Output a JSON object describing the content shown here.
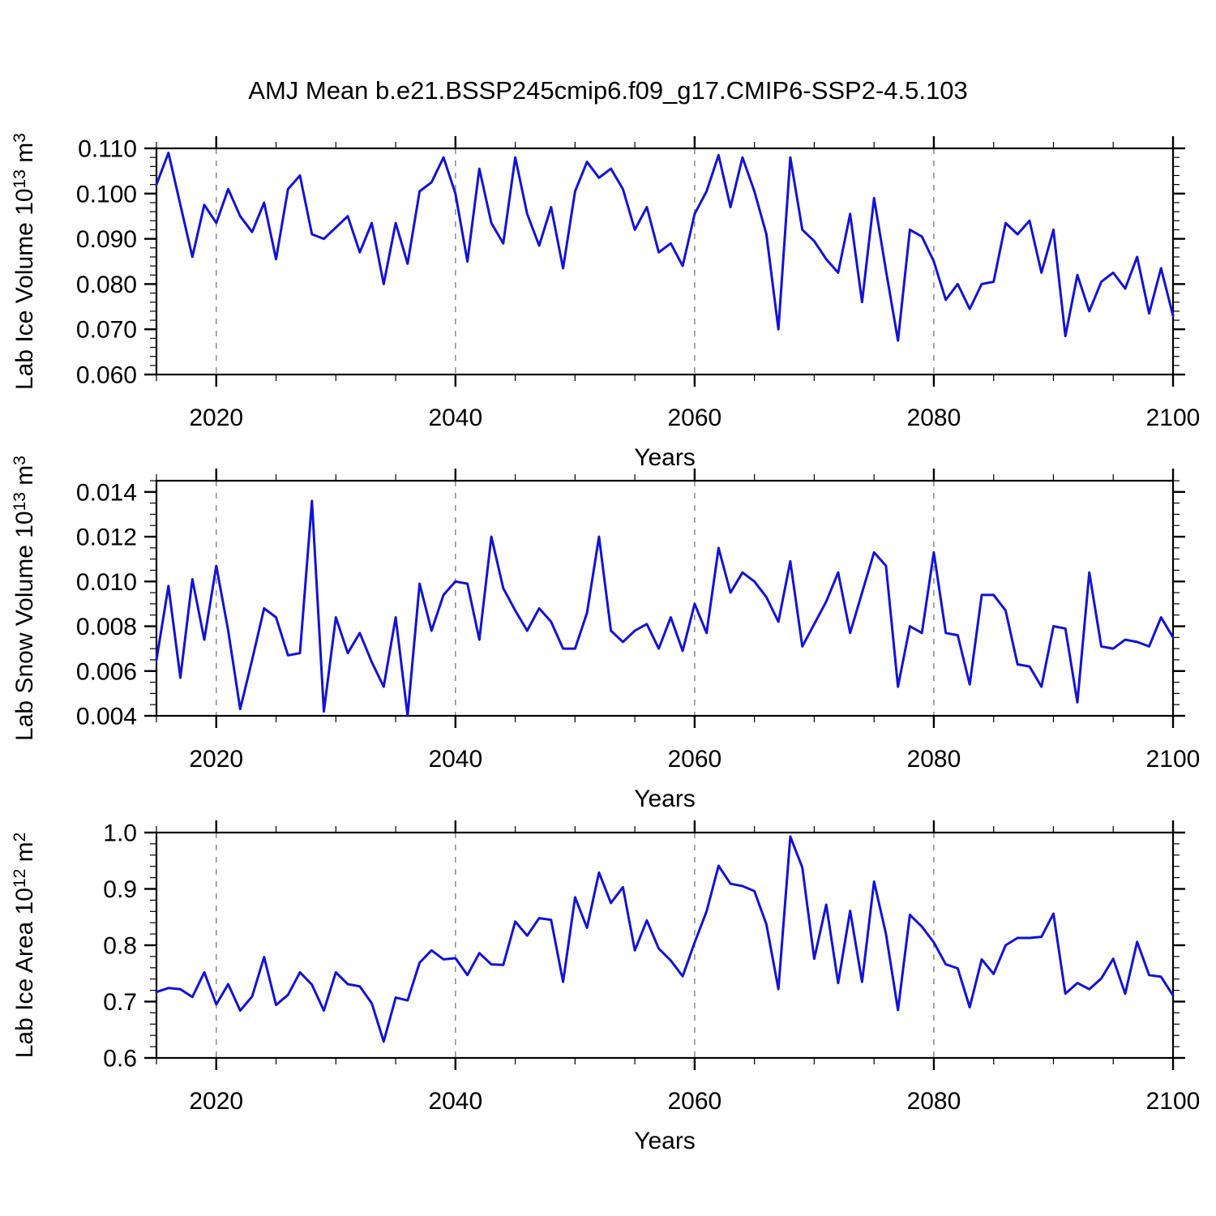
{
  "title": "AMJ Mean b.e21.BSSP245cmip6.f09_g17.CMIP6-SSP2-4.5.103",
  "colors": {
    "line": "#1212d8",
    "gridline": "#8a8a8a",
    "axis": "#000000",
    "background": "#ffffff"
  },
  "x_axis": {
    "label": "Years",
    "min": 2015,
    "max": 2100,
    "major_ticks": [
      2020,
      2040,
      2060,
      2080,
      2100
    ],
    "minor_step": 5,
    "dashed_gridlines": [
      2020,
      2040,
      2060,
      2080
    ]
  },
  "chart_data": [
    {
      "type": "line",
      "name": "lab-ice-volume",
      "ylabel_text": "Lab Ice Volume 10^13 m^3",
      "ylabel_segments": [
        {
          "text": "Lab Ice Volume 10"
        },
        {
          "text": "13",
          "sup": true
        },
        {
          "text": " m"
        },
        {
          "text": "3",
          "sup": true
        }
      ],
      "xlabel": "Years",
      "ylim": [
        0.06,
        0.11
      ],
      "ytick_min": 0.06,
      "ytick_max": 0.11,
      "ytick_step": 0.01,
      "yminor_step": 0.002,
      "ytick_decimals": 3,
      "x_start": 2015,
      "x_step": 1,
      "values": [
        0.102,
        0.109,
        0.0975,
        0.086,
        0.0975,
        0.0935,
        0.101,
        0.095,
        0.0915,
        0.098,
        0.0855,
        0.101,
        0.104,
        0.091,
        0.09,
        0.0925,
        0.095,
        0.087,
        0.0935,
        0.08,
        0.0935,
        0.0845,
        0.1005,
        0.1025,
        0.108,
        0.1,
        0.085,
        0.1055,
        0.0935,
        0.089,
        0.108,
        0.0955,
        0.0885,
        0.097,
        0.0835,
        0.1005,
        0.107,
        0.1035,
        0.1055,
        0.101,
        0.092,
        0.097,
        0.087,
        0.089,
        0.084,
        0.0955,
        0.1005,
        0.1085,
        0.097,
        0.108,
        0.1005,
        0.091,
        0.07,
        0.108,
        0.092,
        0.0895,
        0.0855,
        0.0825,
        0.0955,
        0.076,
        0.099,
        0.083,
        0.0675,
        0.092,
        0.0905,
        0.085,
        0.0765,
        0.08,
        0.0745,
        0.08,
        0.0805,
        0.0935,
        0.091,
        0.094,
        0.0825,
        0.092,
        0.0685,
        0.082,
        0.074,
        0.0805,
        0.0825,
        0.079,
        0.086,
        0.0735,
        0.0835,
        0.073
      ]
    },
    {
      "type": "line",
      "name": "lab-snow-volume",
      "ylabel_text": "Lab Snow Volume 10^13 m^3",
      "ylabel_segments": [
        {
          "text": "Lab Snow Volume 10"
        },
        {
          "text": "13",
          "sup": true
        },
        {
          "text": " m"
        },
        {
          "text": "3",
          "sup": true
        }
      ],
      "xlabel": "Years",
      "ylim": [
        0.004,
        0.0145
      ],
      "ytick_min": 0.004,
      "ytick_max": 0.014,
      "ytick_step": 0.002,
      "yminor_step": 0.0005,
      "ytick_decimals": 3,
      "x_start": 2015,
      "x_step": 1,
      "values": [
        0.0065,
        0.0098,
        0.0057,
        0.0101,
        0.0074,
        0.0107,
        0.0078,
        0.0043,
        0.0065,
        0.0088,
        0.0084,
        0.0067,
        0.0068,
        0.0136,
        0.0042,
        0.0084,
        0.0068,
        0.0077,
        0.0064,
        0.0053,
        0.0084,
        0.004,
        0.0099,
        0.0078,
        0.0094,
        0.01,
        0.0099,
        0.0074,
        0.012,
        0.0097,
        0.0087,
        0.0078,
        0.0088,
        0.0082,
        0.007,
        0.007,
        0.0086,
        0.012,
        0.0078,
        0.0073,
        0.0078,
        0.0081,
        0.007,
        0.0084,
        0.0069,
        0.009,
        0.0077,
        0.0115,
        0.0095,
        0.0104,
        0.01,
        0.0093,
        0.0082,
        0.0109,
        0.0071,
        0.0081,
        0.0091,
        0.0104,
        0.0077,
        0.0095,
        0.0113,
        0.0107,
        0.0053,
        0.008,
        0.0077,
        0.0113,
        0.0077,
        0.0076,
        0.0054,
        0.0094,
        0.0094,
        0.0087,
        0.0063,
        0.0062,
        0.0053,
        0.008,
        0.0079,
        0.0046,
        0.0104,
        0.0071,
        0.007,
        0.0074,
        0.0073,
        0.0071,
        0.0084,
        0.0075
      ]
    },
    {
      "type": "line",
      "name": "lab-ice-area",
      "ylabel_text": "Lab Ice Area 10^12 m^2",
      "ylabel_segments": [
        {
          "text": "Lab Ice Area 10"
        },
        {
          "text": "12",
          "sup": true
        },
        {
          "text": " m"
        },
        {
          "text": "2",
          "sup": true
        }
      ],
      "xlabel": "Years",
      "ylim": [
        0.6,
        1.0
      ],
      "ytick_min": 0.6,
      "ytick_max": 1.0,
      "ytick_step": 0.1,
      "yminor_step": 0.02,
      "ytick_decimals": 1,
      "x_start": 2015,
      "x_step": 1,
      "values": [
        0.717,
        0.724,
        0.722,
        0.708,
        0.752,
        0.695,
        0.731,
        0.684,
        0.709,
        0.779,
        0.694,
        0.712,
        0.752,
        0.73,
        0.684,
        0.752,
        0.731,
        0.727,
        0.697,
        0.629,
        0.707,
        0.702,
        0.769,
        0.791,
        0.775,
        0.777,
        0.747,
        0.786,
        0.766,
        0.765,
        0.842,
        0.817,
        0.848,
        0.845,
        0.735,
        0.885,
        0.831,
        0.929,
        0.875,
        0.903,
        0.791,
        0.844,
        0.794,
        0.773,
        0.745,
        0.805,
        0.86,
        0.941,
        0.909,
        0.905,
        0.896,
        0.837,
        0.722,
        0.993,
        0.938,
        0.776,
        0.872,
        0.733,
        0.861,
        0.735,
        0.913,
        0.82,
        0.685,
        0.854,
        0.833,
        0.805,
        0.766,
        0.759,
        0.69,
        0.775,
        0.749,
        0.8,
        0.813,
        0.813,
        0.815,
        0.856,
        0.714,
        0.733,
        0.722,
        0.741,
        0.776,
        0.714,
        0.806,
        0.747,
        0.744,
        0.711
      ]
    }
  ]
}
